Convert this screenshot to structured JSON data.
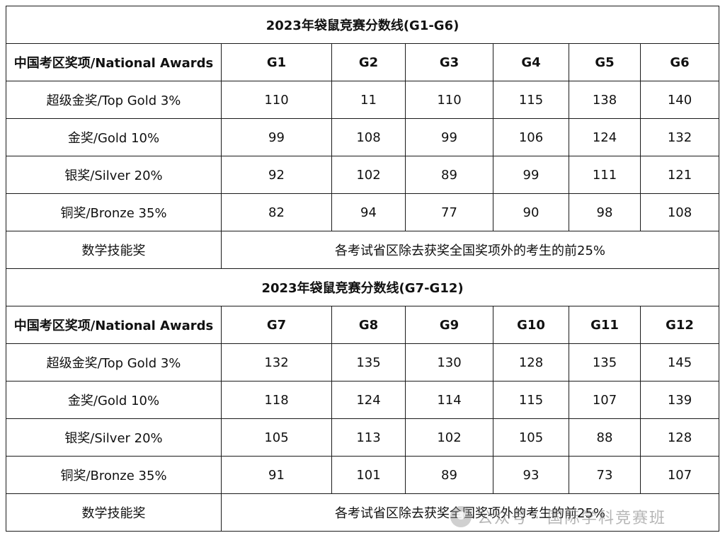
{
  "sections": [
    {
      "title": "2023年袋鼠竞赛分数线(G1-G6)",
      "header": [
        "中国考区奖项/National Awards",
        "G1",
        "G2",
        "G3",
        "G4",
        "G5",
        "G6"
      ],
      "rows": [
        [
          "超级金奖/Top Gold 3%",
          "110",
          "11",
          "110",
          "115",
          "138",
          "140"
        ],
        [
          "金奖/Gold 10%",
          "99",
          "108",
          "99",
          "106",
          "124",
          "132"
        ],
        [
          "银奖/Silver 20%",
          "92",
          "102",
          "89",
          "99",
          "111",
          "121"
        ],
        [
          "铜奖/Bronze 35%",
          "82",
          "94",
          "77",
          "90",
          "98",
          "108"
        ]
      ],
      "skill_award": {
        "label": "数学技能奖",
        "description": "各考试省区除去获奖全国奖项外的考生的前25%"
      }
    },
    {
      "title": "2023年袋鼠竞赛分数线(G7-G12)",
      "header": [
        "中国考区奖项/National Awards",
        "G7",
        "G8",
        "G9",
        "G10",
        "G11",
        "G12"
      ],
      "rows": [
        [
          "超级金奖/Top Gold 3%",
          "132",
          "135",
          "130",
          "128",
          "135",
          "145"
        ],
        [
          "金奖/Gold 10%",
          "118",
          "124",
          "114",
          "115",
          "107",
          "139"
        ],
        [
          "银奖/Silver 20%",
          "105",
          "113",
          "102",
          "105",
          "88",
          "128"
        ],
        [
          "铜奖/Bronze 35%",
          "91",
          "101",
          "89",
          "93",
          "73",
          "107"
        ]
      ],
      "skill_award": {
        "label": "数学技能奖",
        "description": "各考试省区除去获奖全国奖项外的考生的前25%"
      }
    }
  ],
  "watermark": {
    "text": "公众号 · 国际学科竞赛班",
    "icon": "wechat-logo-icon"
  }
}
